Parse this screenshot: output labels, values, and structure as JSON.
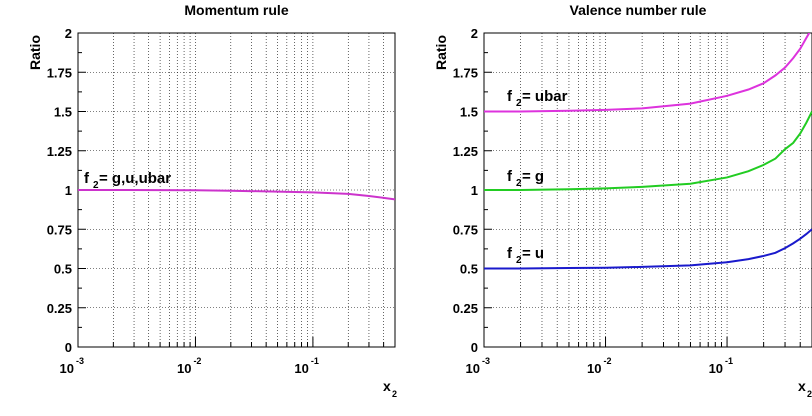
{
  "chart_data": [
    {
      "type": "line",
      "title": "Momentum rule",
      "xlabel": "x",
      "xlabel_sub": "2",
      "ylabel": "Ratio",
      "xscale": "log",
      "xlim": [
        0.001,
        0.5
      ],
      "ylim": [
        0,
        2
      ],
      "grid": true,
      "x_ticks": [
        {
          "base": "10",
          "exp": "-3"
        },
        {
          "base": "10",
          "exp": "-2"
        },
        {
          "base": "10",
          "exp": "-1"
        }
      ],
      "y_ticks": [
        "0",
        "0.25",
        "0.5",
        "0.75",
        "1",
        "1.25",
        "1.5",
        "1.75",
        "2"
      ],
      "series": [
        {
          "color": "#cc33cc",
          "label_main": "f",
          "label_sub": "2",
          "label_rest": " = g,u,ubar",
          "x": [
            0.001,
            0.002,
            0.005,
            0.01,
            0.02,
            0.05,
            0.1,
            0.2,
            0.3,
            0.4,
            0.5
          ],
          "y": [
            1.0,
            1.0,
            0.999,
            0.998,
            0.995,
            0.99,
            0.985,
            0.975,
            0.962,
            0.95,
            0.94
          ]
        }
      ]
    },
    {
      "type": "line",
      "title": "Valence number rule",
      "xlabel": "x",
      "xlabel_sub": "2",
      "ylabel": "Ratio",
      "xscale": "log",
      "xlim": [
        0.001,
        0.5
      ],
      "ylim": [
        0,
        2
      ],
      "grid": true,
      "x_ticks": [
        {
          "base": "10",
          "exp": "-3"
        },
        {
          "base": "10",
          "exp": "-2"
        },
        {
          "base": "10",
          "exp": "-1"
        }
      ],
      "y_ticks": [
        "0",
        "0.25",
        "0.5",
        "0.75",
        "1",
        "1.25",
        "1.5",
        "1.75",
        "2"
      ],
      "series": [
        {
          "color": "#dd33dd",
          "label_main": "f",
          "label_sub": "2",
          "label_rest": " = ubar",
          "x": [
            0.001,
            0.002,
            0.005,
            0.01,
            0.02,
            0.05,
            0.1,
            0.15,
            0.2,
            0.25,
            0.3,
            0.35,
            0.4,
            0.45,
            0.5
          ],
          "y": [
            1.5,
            1.5,
            1.505,
            1.51,
            1.52,
            1.55,
            1.6,
            1.64,
            1.68,
            1.73,
            1.78,
            1.84,
            1.9,
            1.97,
            2.03
          ]
        },
        {
          "color": "#22cc22",
          "label_main": "f",
          "label_sub": "2",
          "label_rest": " = g",
          "x": [
            0.001,
            0.002,
            0.005,
            0.01,
            0.02,
            0.05,
            0.1,
            0.15,
            0.2,
            0.25,
            0.3,
            0.35,
            0.4,
            0.45,
            0.5
          ],
          "y": [
            1.0,
            1.0,
            1.005,
            1.01,
            1.02,
            1.04,
            1.08,
            1.12,
            1.16,
            1.2,
            1.26,
            1.3,
            1.36,
            1.43,
            1.5
          ]
        },
        {
          "color": "#1a1acc",
          "label_main": "f",
          "label_sub": "2",
          "label_rest": " = u",
          "x": [
            0.001,
            0.002,
            0.005,
            0.01,
            0.02,
            0.05,
            0.1,
            0.15,
            0.2,
            0.25,
            0.3,
            0.35,
            0.4,
            0.45,
            0.5
          ],
          "y": [
            0.5,
            0.5,
            0.503,
            0.505,
            0.51,
            0.52,
            0.54,
            0.56,
            0.58,
            0.6,
            0.63,
            0.66,
            0.69,
            0.72,
            0.75
          ]
        }
      ]
    }
  ]
}
